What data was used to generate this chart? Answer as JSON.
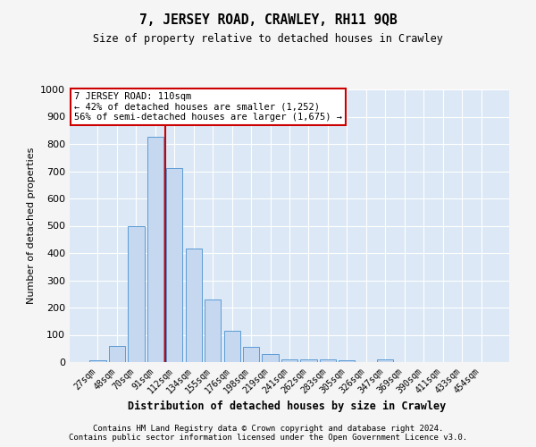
{
  "title1": "7, JERSEY ROAD, CRAWLEY, RH11 9QB",
  "title2": "Size of property relative to detached houses in Crawley",
  "xlabel": "Distribution of detached houses by size in Crawley",
  "ylabel": "Number of detached properties",
  "categories": [
    "27sqm",
    "48sqm",
    "70sqm",
    "91sqm",
    "112sqm",
    "134sqm",
    "155sqm",
    "176sqm",
    "198sqm",
    "219sqm",
    "241sqm",
    "262sqm",
    "283sqm",
    "305sqm",
    "326sqm",
    "347sqm",
    "369sqm",
    "390sqm",
    "411sqm",
    "433sqm",
    "454sqm"
  ],
  "values": [
    5,
    60,
    500,
    825,
    710,
    415,
    230,
    115,
    55,
    30,
    10,
    10,
    10,
    8,
    0,
    10,
    0,
    0,
    0,
    0,
    0
  ],
  "bar_color": "#c5d8f0",
  "bar_edge_color": "#5b9bd5",
  "plot_bg_color": "#dce8f5",
  "grid_color": "#ffffff",
  "property_line_color": "#cc0000",
  "property_line_xindex": 3.5,
  "annotation_text": "7 JERSEY ROAD: 110sqm\n← 42% of detached houses are smaller (1,252)\n56% of semi-detached houses are larger (1,675) →",
  "annotation_box_facecolor": "#ffffff",
  "annotation_box_edgecolor": "#cc0000",
  "footer1": "Contains HM Land Registry data © Crown copyright and database right 2024.",
  "footer2": "Contains public sector information licensed under the Open Government Licence v3.0.",
  "ylim": [
    0,
    1000
  ],
  "yticks": [
    0,
    100,
    200,
    300,
    400,
    500,
    600,
    700,
    800,
    900,
    1000
  ],
  "fig_bg_color": "#f5f5f5",
  "title1_fontsize": 10.5,
  "title2_fontsize": 8.5,
  "xlabel_fontsize": 8.5,
  "ylabel_fontsize": 8,
  "tick_fontsize": 7,
  "annotation_fontsize": 7.5,
  "footer_fontsize": 6.5
}
